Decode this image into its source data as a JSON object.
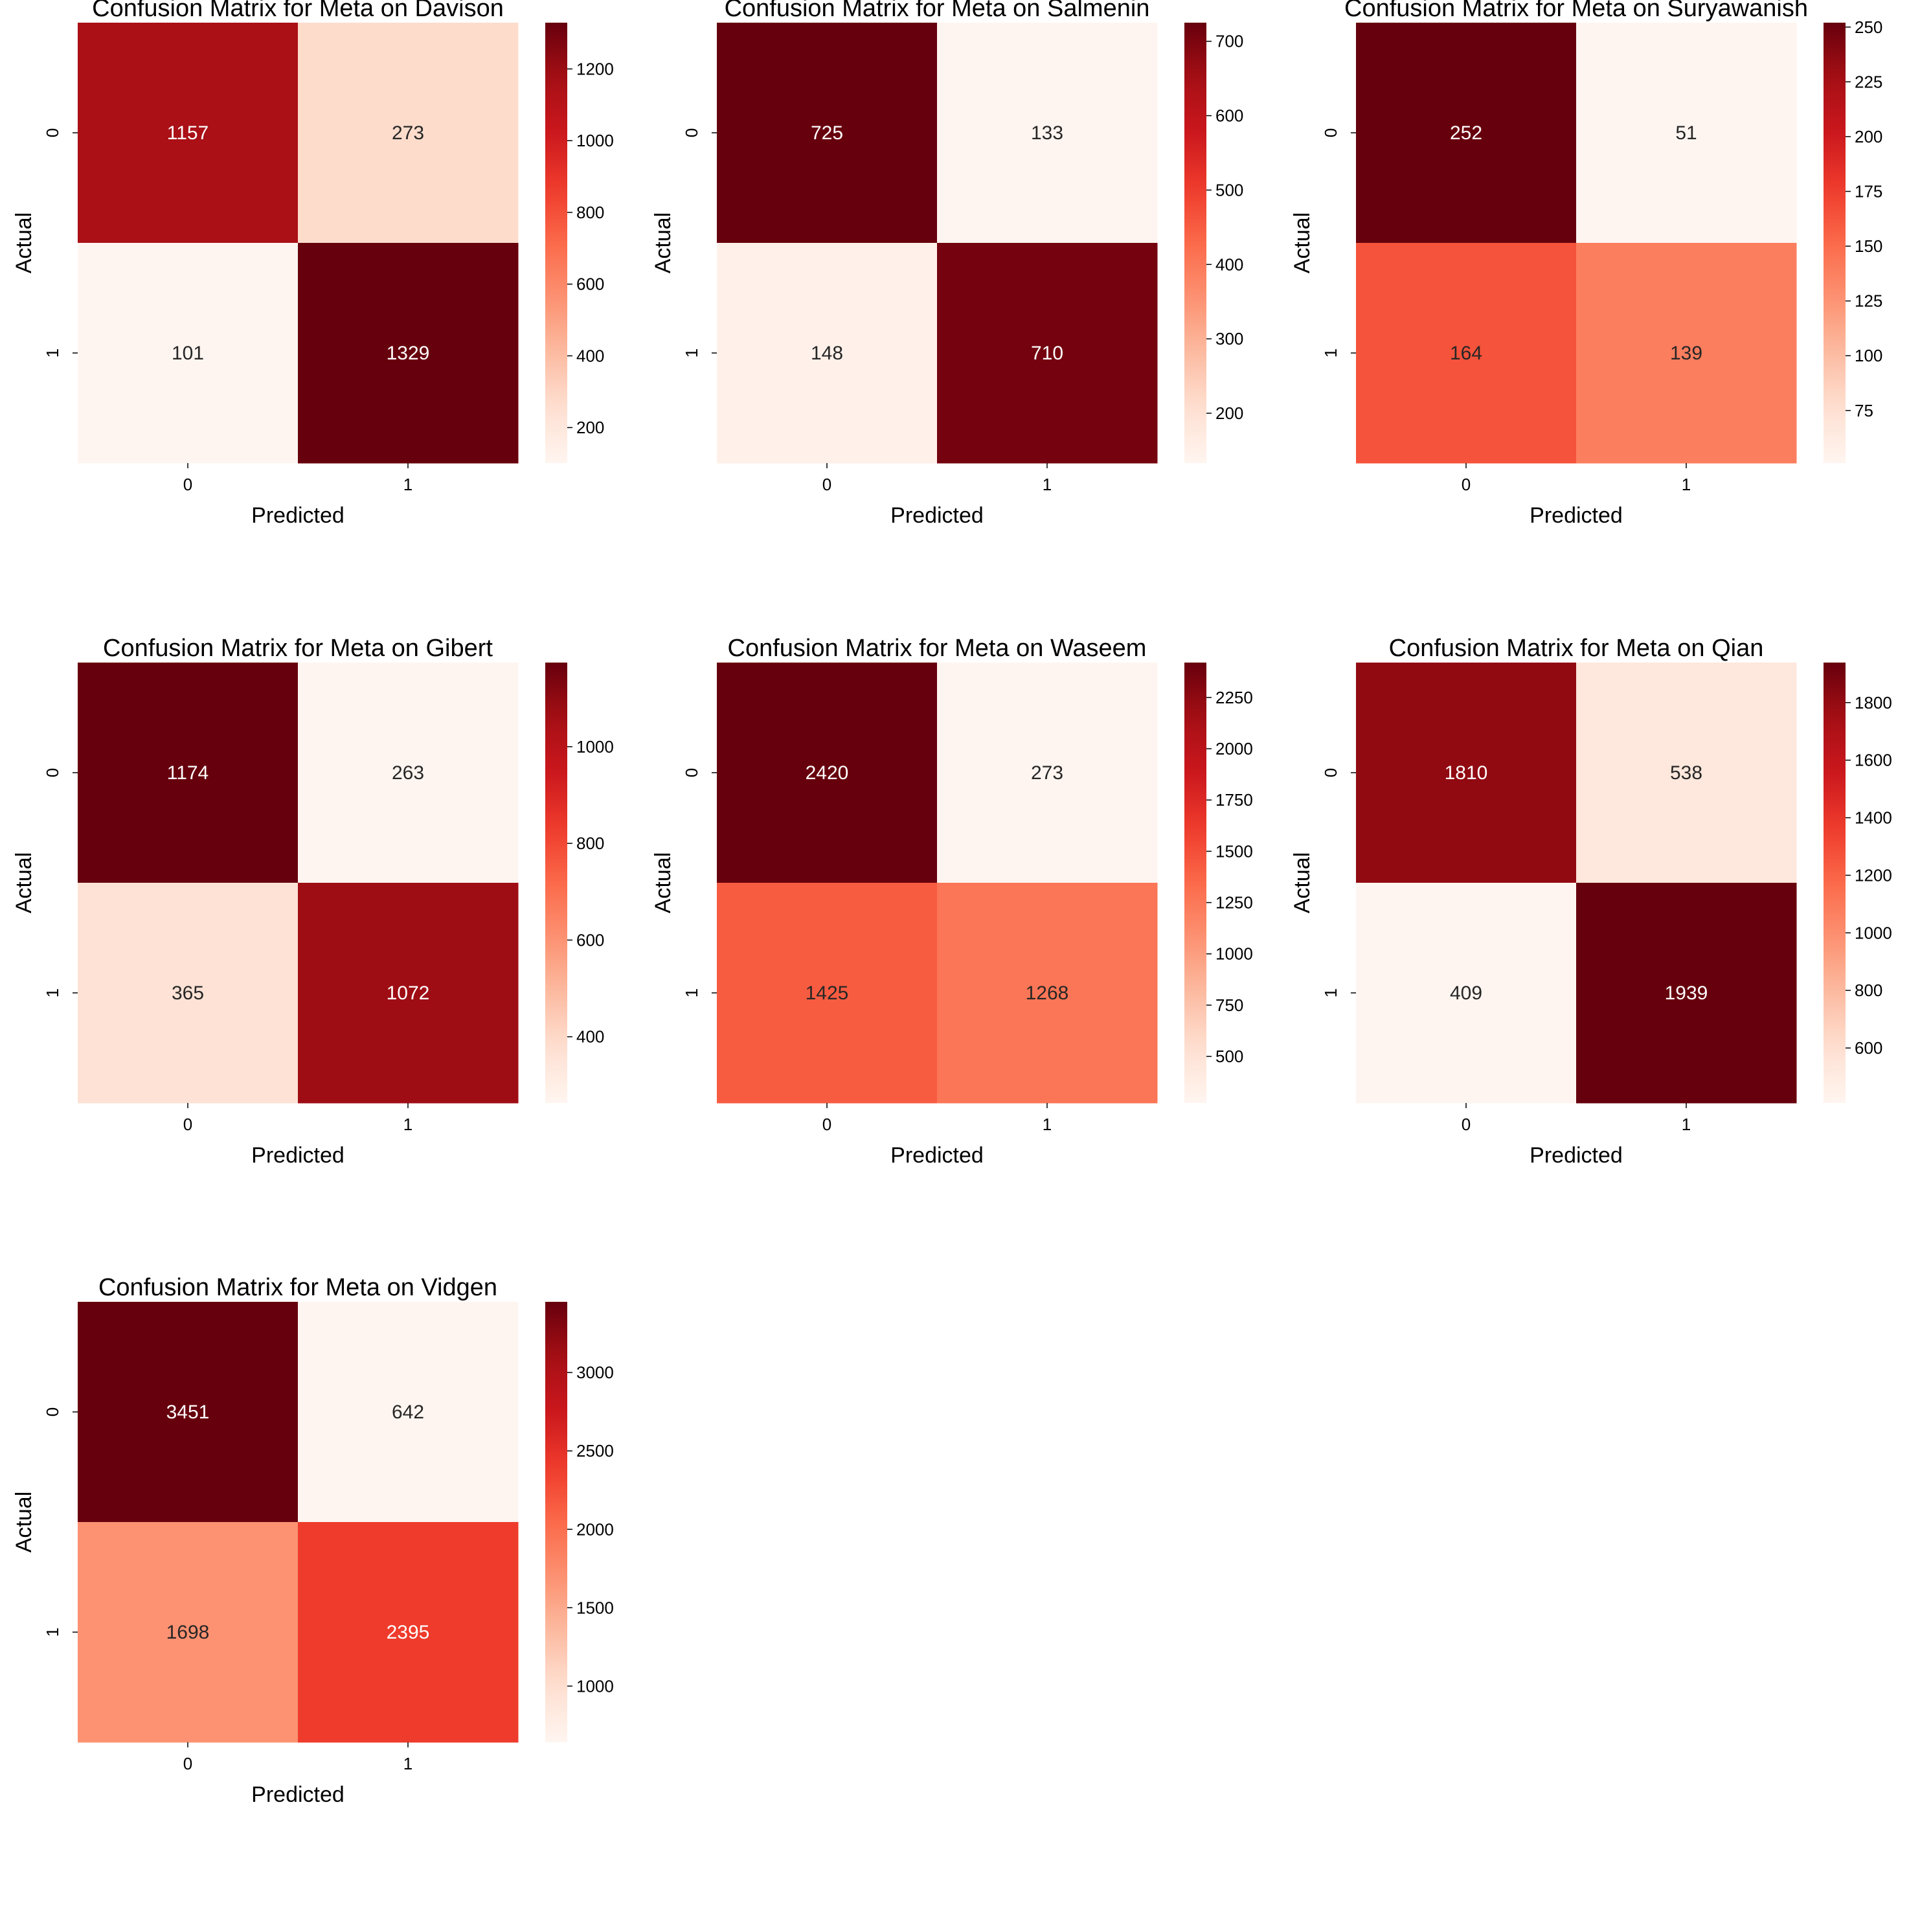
{
  "chart_data": [
    {
      "type": "heatmap",
      "title": "Confusion Matrix for Meta on Davison",
      "xlabel": "Predicted",
      "ylabel": "Actual",
      "x_categories": [
        "0",
        "1"
      ],
      "y_categories": [
        "0",
        "1"
      ],
      "values": [
        [
          1157,
          273
        ],
        [
          101,
          1329
        ]
      ],
      "colormap": "Reds",
      "colorbar_ticks": [
        200,
        400,
        600,
        800,
        1000,
        1200
      ]
    },
    {
      "type": "heatmap",
      "title": "Confusion Matrix for Meta on Salmenin",
      "xlabel": "Predicted",
      "ylabel": "Actual",
      "x_categories": [
        "0",
        "1"
      ],
      "y_categories": [
        "0",
        "1"
      ],
      "values": [
        [
          725,
          133
        ],
        [
          148,
          710
        ]
      ],
      "colormap": "Reds",
      "colorbar_ticks": [
        200,
        300,
        400,
        500,
        600,
        700
      ]
    },
    {
      "type": "heatmap",
      "title": "Confusion Matrix for Meta on Suryawanish",
      "xlabel": "Predicted",
      "ylabel": "Actual",
      "x_categories": [
        "0",
        "1"
      ],
      "y_categories": [
        "0",
        "1"
      ],
      "values": [
        [
          252,
          51
        ],
        [
          164,
          139
        ]
      ],
      "colormap": "Reds",
      "colorbar_ticks": [
        75,
        100,
        125,
        150,
        175,
        200,
        225,
        250
      ]
    },
    {
      "type": "heatmap",
      "title": "Confusion Matrix for Meta on Gibert",
      "xlabel": "Predicted",
      "ylabel": "Actual",
      "x_categories": [
        "0",
        "1"
      ],
      "y_categories": [
        "0",
        "1"
      ],
      "values": [
        [
          1174,
          263
        ],
        [
          365,
          1072
        ]
      ],
      "colormap": "Reds",
      "colorbar_ticks": [
        400,
        600,
        800,
        1000
      ]
    },
    {
      "type": "heatmap",
      "title": "Confusion Matrix for Meta on Waseem",
      "xlabel": "Predicted",
      "ylabel": "Actual",
      "x_categories": [
        "0",
        "1"
      ],
      "y_categories": [
        "0",
        "1"
      ],
      "values": [
        [
          2420,
          273
        ],
        [
          1425,
          1268
        ]
      ],
      "colormap": "Reds",
      "colorbar_ticks": [
        500,
        750,
        1000,
        1250,
        1500,
        1750,
        2000,
        2250
      ]
    },
    {
      "type": "heatmap",
      "title": "Confusion Matrix for Meta on Qian",
      "xlabel": "Predicted",
      "ylabel": "Actual",
      "x_categories": [
        "0",
        "1"
      ],
      "y_categories": [
        "0",
        "1"
      ],
      "values": [
        [
          1810,
          538
        ],
        [
          409,
          1939
        ]
      ],
      "colormap": "Reds",
      "colorbar_ticks": [
        600,
        800,
        1000,
        1200,
        1400,
        1600,
        1800
      ]
    },
    {
      "type": "heatmap",
      "title": "Confusion Matrix for Meta on Vidgen",
      "xlabel": "Predicted",
      "ylabel": "Actual",
      "x_categories": [
        "0",
        "1"
      ],
      "y_categories": [
        "0",
        "1"
      ],
      "values": [
        [
          3451,
          642
        ],
        [
          1698,
          2395
        ]
      ],
      "colormap": "Reds",
      "colorbar_ticks": [
        1000,
        1500,
        2000,
        2500,
        3000
      ]
    }
  ]
}
